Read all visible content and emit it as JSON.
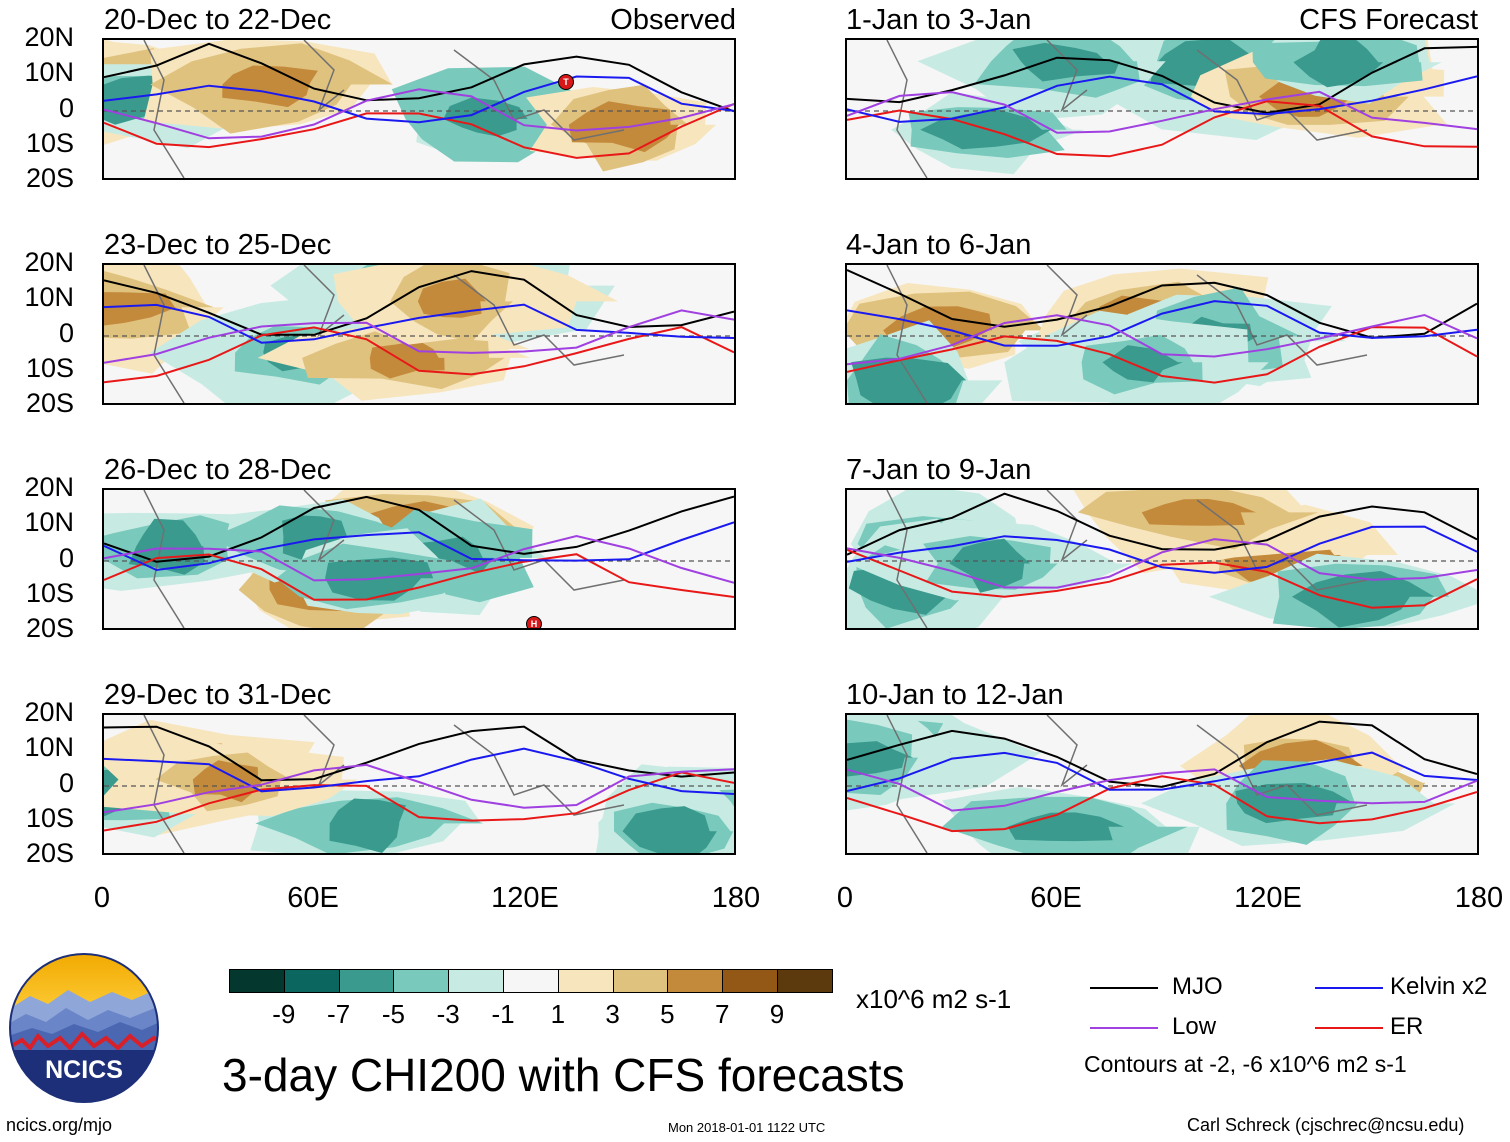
{
  "figure_title": "3-day CHI200 with CFS forecasts",
  "observed_label": "Observed",
  "forecast_label": "CFS Forecast",
  "lat_labels": [
    "20N",
    "10N",
    "0",
    "10S",
    "20S"
  ],
  "lon_labels": [
    "0",
    "60E",
    "120E",
    "180"
  ],
  "colorbar": {
    "tick_labels": [
      "-9",
      "-7",
      "-5",
      "-3",
      "-1",
      "1",
      "3",
      "5",
      "7",
      "9"
    ],
    "colors": [
      "#04372d",
      "#0c6660",
      "#3a9a8e",
      "#79c9bc",
      "#c7ebe3",
      "#f6f6f6",
      "#f7e5bd",
      "#e0c27f",
      "#c48a3c",
      "#935716",
      "#5c3a0e"
    ],
    "units": "x10^6 m2 s-1"
  },
  "legend": {
    "items": [
      {
        "label": "MJO",
        "color": "#000000"
      },
      {
        "label": "Kelvin x2",
        "color": "#1a1af0"
      },
      {
        "label": "Low",
        "color": "#a040e0"
      },
      {
        "label": "ER",
        "color": "#e81818"
      }
    ],
    "contour_note": "Contours at -2, -6 x10^6 m2 s-1"
  },
  "panels": [
    {
      "title": "20-Dec to 22-Dec",
      "markers": [
        "T"
      ]
    },
    {
      "title": "1-Jan to 3-Jan",
      "markers": []
    },
    {
      "title": "23-Dec to 25-Dec",
      "markers": []
    },
    {
      "title": "4-Jan to 6-Jan",
      "markers": []
    },
    {
      "title": "26-Dec to 28-Dec",
      "markers": [
        "H"
      ]
    },
    {
      "title": "7-Jan to 9-Jan",
      "markers": []
    },
    {
      "title": "29-Dec to 31-Dec",
      "markers": []
    },
    {
      "title": "10-Jan to 12-Jan",
      "markers": []
    }
  ],
  "logo_text": "NCICS",
  "footer": {
    "left": "ncics.org/mjo",
    "center": "Mon 2018-01-01 1122 UTC",
    "right": "Carl Schreck (cjschrec@ncsu.edu)"
  }
}
